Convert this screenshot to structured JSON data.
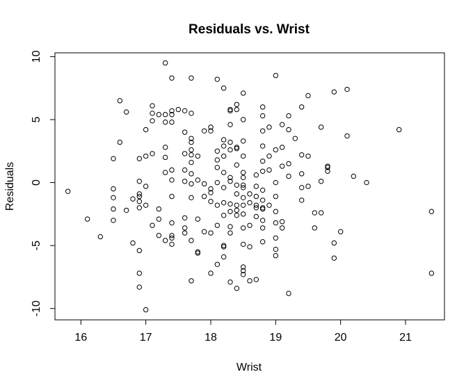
{
  "chart_data": {
    "type": "scatter",
    "title": "Residuals vs. Wrist",
    "xlabel": "Wrist",
    "ylabel": "Residuals",
    "xlim": [
      15.6,
      21.6
    ],
    "ylim": [
      -10.9,
      10.3
    ],
    "xticks": [
      16,
      17,
      18,
      19,
      20,
      21
    ],
    "yticks": [
      -10,
      -5,
      0,
      5,
      10
    ],
    "grid": false,
    "marker": "open-circle",
    "x": [
      15.8,
      16.1,
      16.3,
      16.5,
      16.5,
      16.5,
      16.5,
      16.5,
      16.6,
      16.6,
      16.7,
      16.7,
      16.8,
      16.8,
      16.9,
      16.9,
      16.9,
      16.9,
      16.9,
      16.9,
      16.9,
      16.9,
      16.9,
      17.0,
      17.0,
      17.0,
      17.0,
      17.0,
      17.1,
      17.1,
      17.1,
      17.1,
      17.1,
      17.2,
      17.2,
      17.2,
      17.2,
      17.3,
      17.3,
      17.3,
      17.3,
      17.3,
      17.3,
      17.3,
      17.4,
      17.4,
      17.4,
      17.4,
      17.4,
      17.4,
      17.4,
      17.4,
      17.4,
      17.4,
      17.4,
      17.5,
      17.6,
      17.6,
      17.6,
      17.6,
      17.6,
      17.6,
      17.6,
      17.6,
      17.7,
      17.7,
      17.7,
      17.7,
      17.7,
      17.7,
      17.7,
      17.7,
      17.7,
      17.7,
      17.7,
      17.7,
      17.8,
      17.8,
      17.8,
      17.8,
      17.8,
      17.9,
      17.9,
      17.9,
      17.9,
      18.0,
      18.0,
      18.0,
      18.0,
      18.0,
      18.0,
      18.0,
      18.1,
      18.1,
      18.1,
      18.1,
      18.1,
      18.1,
      18.1,
      18.1,
      18.2,
      18.2,
      18.2,
      18.2,
      18.2,
      18.2,
      18.2,
      18.2,
      18.2,
      18.2,
      18.2,
      18.3,
      18.3,
      18.3,
      18.3,
      18.3,
      18.3,
      18.3,
      18.3,
      18.3,
      18.3,
      18.3,
      18.3,
      18.4,
      18.4,
      18.4,
      18.4,
      18.4,
      18.4,
      18.4,
      18.4,
      18.4,
      18.4,
      18.4,
      18.5,
      18.5,
      18.5,
      18.5,
      18.5,
      18.5,
      18.5,
      18.5,
      18.5,
      18.5,
      18.5,
      18.5,
      18.5,
      18.5,
      18.5,
      18.5,
      18.6,
      18.6,
      18.6,
      18.6,
      18.6,
      18.7,
      18.7,
      18.7,
      18.7,
      18.7,
      18.7,
      18.7,
      18.8,
      18.8,
      18.8,
      18.8,
      18.8,
      18.8,
      18.8,
      18.8,
      18.8,
      18.8,
      18.8,
      18.8,
      18.8,
      18.9,
      18.9,
      18.9,
      18.9,
      19.0,
      19.0,
      19.0,
      19.0,
      19.0,
      19.0,
      19.0,
      19.0,
      19.0,
      19.1,
      19.1,
      19.1,
      19.1,
      19.1,
      19.2,
      19.2,
      19.2,
      19.2,
      19.2,
      19.3,
      19.4,
      19.4,
      19.4,
      19.4,
      19.4,
      19.5,
      19.5,
      19.5,
      19.6,
      19.6,
      19.7,
      19.7,
      19.7,
      19.8,
      19.8,
      19.8,
      19.9,
      19.9,
      19.9,
      20.0,
      20.1,
      20.1,
      20.2,
      20.4,
      20.9,
      21.4,
      21.4
    ],
    "y": [
      -0.7,
      -2.9,
      -4.3,
      1.9,
      -0.5,
      -1.2,
      -2.1,
      -3.0,
      6.5,
      3.2,
      5.6,
      -2.2,
      -1.3,
      -4.8,
      1.9,
      0.1,
      -1.1,
      -1.5,
      -2.0,
      -5.4,
      -7.2,
      -8.3,
      -0.9,
      -10.1,
      4.2,
      2.1,
      -0.3,
      -1.8,
      6.1,
      5.5,
      4.9,
      2.3,
      -3.4,
      5.4,
      -2.1,
      -2.9,
      -4.2,
      9.5,
      5.4,
      4.8,
      2.8,
      2.0,
      0.8,
      -4.6,
      8.3,
      5.7,
      5.4,
      4.8,
      1.0,
      0.2,
      -1.1,
      -3.2,
      -4.2,
      -4.4,
      -4.9,
      5.8,
      5.7,
      4.0,
      2.3,
      1.0,
      0.1,
      -2.8,
      -3.6,
      -4.0,
      8.3,
      5.5,
      3.5,
      3.2,
      2.6,
      2.2,
      1.6,
      0.7,
      -0.1,
      -1.2,
      -4.6,
      -7.8,
      2.1,
      0.2,
      -2.9,
      -5.5,
      -5.6,
      4.1,
      -0.1,
      -1.1,
      -3.9,
      4.4,
      4.1,
      -0.5,
      -0.8,
      -1.5,
      -4.0,
      -7.2,
      8.2,
      2.5,
      1.8,
      1.2,
      0.0,
      -1.8,
      -3.4,
      -6.5,
      7.5,
      3.4,
      2.9,
      2.1,
      0.8,
      -0.4,
      -1.6,
      -2.6,
      -5.0,
      -5.1,
      -5.9,
      5.8,
      4.6,
      3.2,
      2.6,
      0.4,
      0.1,
      -1.7,
      -2.3,
      -3.5,
      -4.0,
      -7.9,
      5.7,
      6.2,
      5.8,
      2.8,
      2.7,
      1.4,
      -0.2,
      -0.9,
      -1.8,
      -2.2,
      -2.6,
      -8.4,
      7.1,
      5.0,
      3.3,
      2.1,
      0.8,
      0.4,
      -0.2,
      -0.4,
      -1.2,
      -1.8,
      -2.5,
      -3.6,
      -4.9,
      -6.7,
      -7.0,
      -7.3,
      -0.9,
      -1.6,
      -3.4,
      -5.1,
      -7.8,
      0.6,
      -0.3,
      -1.1,
      -1.8,
      -2.0,
      -2.7,
      -7.7,
      6.0,
      5.3,
      4.1,
      2.9,
      1.7,
      0.9,
      -0.6,
      -1.4,
      -2.0,
      -2.1,
      -3.0,
      -3.6,
      -4.7,
      4.4,
      2.1,
      1.0,
      -1.8,
      8.5,
      2.6,
      0.0,
      -1.1,
      -2.3,
      -3.2,
      -4.4,
      -5.3,
      -5.8,
      4.6,
      2.8,
      1.3,
      -3.1,
      -3.6,
      5.3,
      4.2,
      1.5,
      0.5,
      -8.8,
      3.5,
      6.0,
      2.2,
      0.7,
      -0.4,
      -1.4,
      6.9,
      2.1,
      -0.3,
      -2.4,
      -3.6,
      4.4,
      0.1,
      -2.4,
      1.3,
      1.2,
      0.9,
      7.2,
      -4.8,
      -6.0,
      -3.9,
      7.4,
      3.7,
      0.5,
      0.0,
      4.2,
      -2.3,
      -7.2
    ]
  }
}
